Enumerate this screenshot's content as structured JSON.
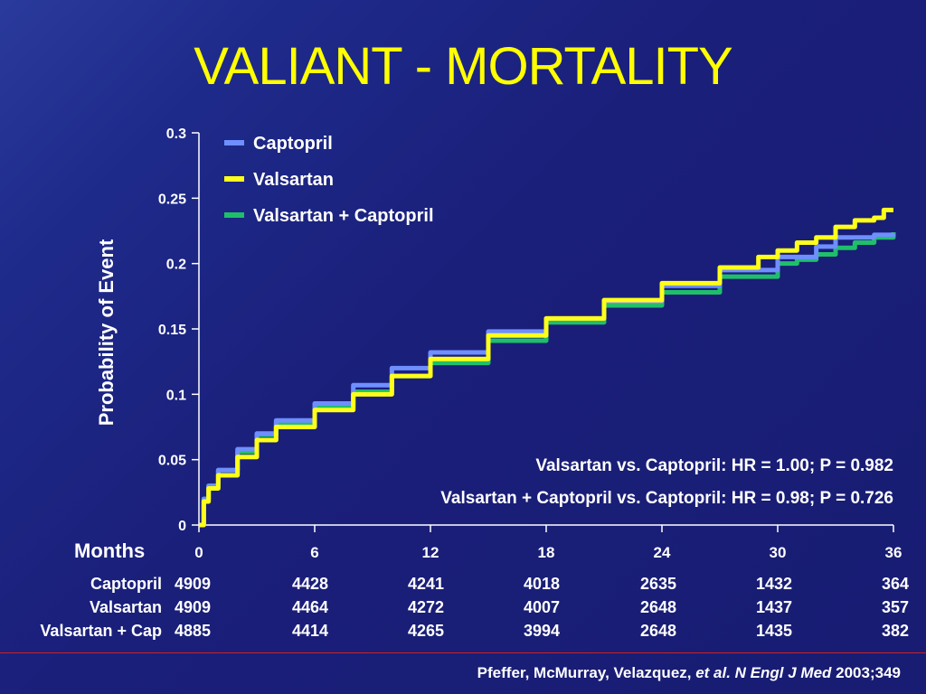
{
  "slide": {
    "title": "VALIANT - MORTALITY",
    "y_axis_label": "Probability of Event",
    "months_label": "Months",
    "stats": [
      "Valsartan vs. Captopril: HR = 1.00; P = 0.982",
      "Valsartan + Captopril vs. Captopril: HR = 0.98; P = 0.726"
    ],
    "citation": {
      "authors": "Pfeffer, McMurray, Velazquez, ",
      "etal": "et al. N Engl J Med",
      "ref": " 2003;349"
    }
  },
  "colors": {
    "background": "#1a1f7a",
    "title": "#ffff00",
    "captopril": "#6f8fff",
    "valsartan": "#ffff1a",
    "combo": "#1fbf6a"
  },
  "chart_data": {
    "type": "line",
    "ylim": [
      0,
      0.3
    ],
    "xlim": [
      0,
      36
    ],
    "y_ticks": [
      "0",
      "0.05",
      "0.1",
      "0.15",
      "0.2",
      "0.25",
      "0.3"
    ],
    "x_ticks": [
      "0",
      "6",
      "12",
      "18",
      "24",
      "30",
      "36"
    ],
    "legend_position": "top-left",
    "series": [
      {
        "name": "Captopril",
        "color": "#6f8fff",
        "points": [
          [
            0,
            0
          ],
          [
            0.25,
            0.02
          ],
          [
            0.5,
            0.03
          ],
          [
            1,
            0.042
          ],
          [
            2,
            0.058
          ],
          [
            3,
            0.07
          ],
          [
            4,
            0.08
          ],
          [
            6,
            0.093
          ],
          [
            8,
            0.107
          ],
          [
            10,
            0.12
          ],
          [
            12,
            0.132
          ],
          [
            15,
            0.148
          ],
          [
            18,
            0.158
          ],
          [
            21,
            0.171
          ],
          [
            24,
            0.183
          ],
          [
            27,
            0.195
          ],
          [
            30,
            0.205
          ],
          [
            32,
            0.213
          ],
          [
            33,
            0.22
          ],
          [
            35,
            0.222
          ],
          [
            36,
            0.223
          ]
        ]
      },
      {
        "name": "Valsartan",
        "color": "#ffff1a",
        "points": [
          [
            0,
            0
          ],
          [
            0.25,
            0.018
          ],
          [
            0.5,
            0.028
          ],
          [
            1,
            0.038
          ],
          [
            2,
            0.052
          ],
          [
            3,
            0.065
          ],
          [
            4,
            0.075
          ],
          [
            6,
            0.088
          ],
          [
            8,
            0.1
          ],
          [
            10,
            0.114
          ],
          [
            12,
            0.127
          ],
          [
            15,
            0.145
          ],
          [
            18,
            0.158
          ],
          [
            21,
            0.172
          ],
          [
            24,
            0.185
          ],
          [
            27,
            0.197
          ],
          [
            29,
            0.205
          ],
          [
            30,
            0.21
          ],
          [
            31,
            0.216
          ],
          [
            32,
            0.22
          ],
          [
            33,
            0.228
          ],
          [
            34,
            0.233
          ],
          [
            35,
            0.235
          ],
          [
            35.5,
            0.241
          ],
          [
            36,
            0.241
          ]
        ]
      },
      {
        "name": "Valsartan + Captopril",
        "color": "#1fbf6a",
        "points": [
          [
            0,
            0
          ],
          [
            0.25,
            0.02
          ],
          [
            0.5,
            0.03
          ],
          [
            1,
            0.042
          ],
          [
            2,
            0.056
          ],
          [
            3,
            0.069
          ],
          [
            4,
            0.078
          ],
          [
            6,
            0.09
          ],
          [
            8,
            0.102
          ],
          [
            10,
            0.114
          ],
          [
            12,
            0.124
          ],
          [
            15,
            0.141
          ],
          [
            18,
            0.155
          ],
          [
            21,
            0.168
          ],
          [
            24,
            0.178
          ],
          [
            27,
            0.19
          ],
          [
            30,
            0.2
          ],
          [
            31,
            0.203
          ],
          [
            32,
            0.207
          ],
          [
            33,
            0.212
          ],
          [
            34,
            0.216
          ],
          [
            35,
            0.22
          ],
          [
            36,
            0.224
          ]
        ]
      }
    ]
  },
  "risk_table": {
    "months": [
      "0",
      "6",
      "12",
      "18",
      "24",
      "30",
      "36"
    ],
    "rows": [
      {
        "name": "Captopril",
        "values": [
          "4909",
          "4428",
          "4241",
          "4018",
          "2635",
          "1432",
          "364"
        ]
      },
      {
        "name": "Valsartan",
        "values": [
          "4909",
          "4464",
          "4272",
          "4007",
          "2648",
          "1437",
          "357"
        ]
      },
      {
        "name": "Valsartan + Cap",
        "values": [
          "4885",
          "4414",
          "4265",
          "3994",
          "2648",
          "1435",
          "382"
        ]
      }
    ]
  }
}
